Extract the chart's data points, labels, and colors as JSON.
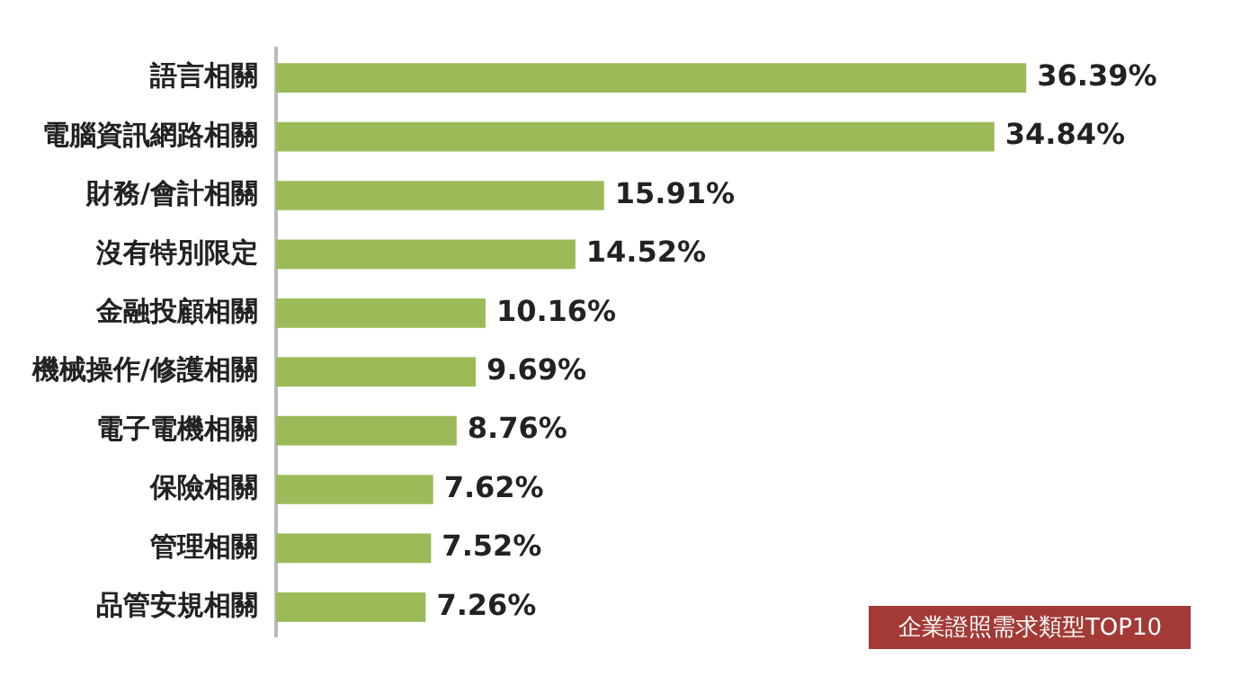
{
  "chart_data": {
    "type": "bar",
    "orientation": "horizontal",
    "categories": [
      "語言相關",
      "電腦資訊網路相關",
      "財務/會計相關",
      "沒有特別限定",
      "金融投顧相關",
      "機械操作/修護相關",
      "電子電機相關",
      "保險相關",
      "管理相關",
      "品管安規相關"
    ],
    "values": [
      36.39,
      34.84,
      15.91,
      14.52,
      10.16,
      9.69,
      8.76,
      7.62,
      7.52,
      7.26
    ],
    "value_labels": [
      "36.39%",
      "34.84%",
      "15.91%",
      "14.52%",
      "10.16%",
      "9.69%",
      "8.76%",
      "7.62%",
      "7.52%",
      "7.26%"
    ],
    "color": "#9bbb59",
    "annotations": [
      "企業證照需求類型TOP10"
    ]
  }
}
